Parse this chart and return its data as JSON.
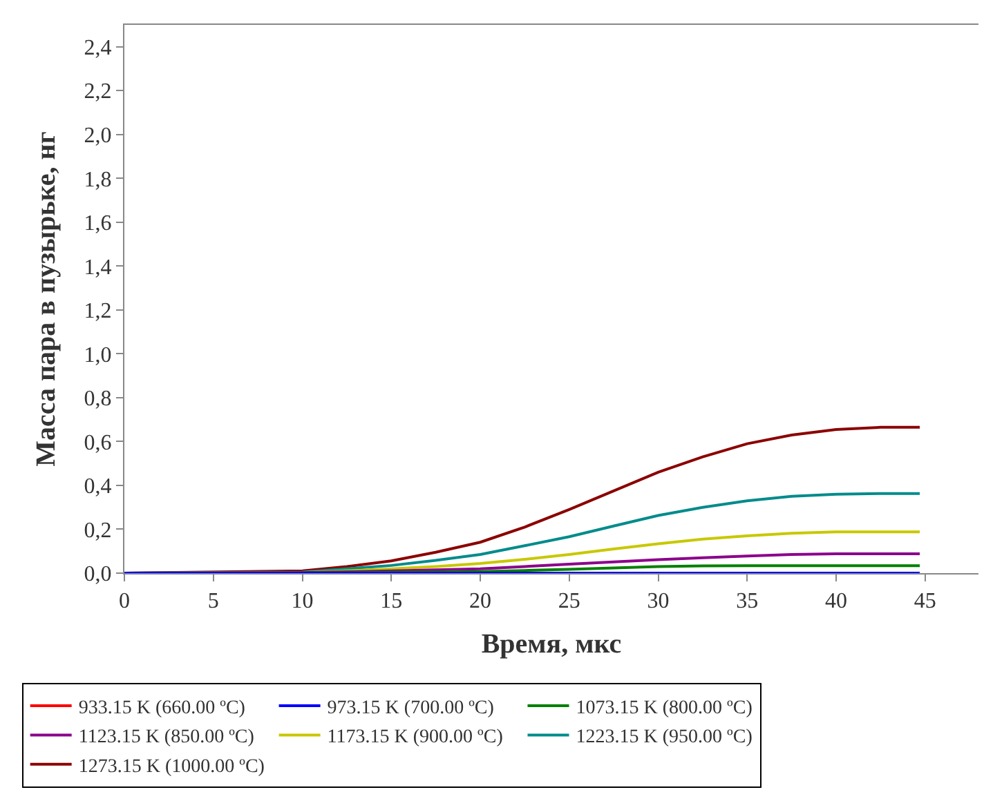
{
  "chart_data": {
    "type": "line",
    "xlabel": "Время, мкс",
    "ylabel": "Масса пара в пузырьке, нг",
    "x": [
      0,
      10,
      12.5,
      15,
      17.5,
      20,
      22.5,
      25,
      27.5,
      30,
      32.5,
      35,
      37.5,
      40,
      42.5,
      44.7
    ],
    "series": [
      {
        "name": "933.15 K (660.00 ºC)",
        "color": "#ff0000",
        "values": [
          null,
          null,
          null,
          null,
          null,
          null,
          null,
          null,
          null,
          null,
          null,
          null,
          null,
          null,
          null,
          null
        ]
      },
      {
        "name": "973.15 K (700.00 ºC)",
        "color": "#0000ff",
        "values": [
          0,
          0,
          0,
          0,
          0,
          0,
          0,
          0,
          0,
          0,
          0,
          0,
          0,
          0,
          0,
          0
        ]
      },
      {
        "name": "1073.15 K (800.00 ºC)",
        "color": "#008000",
        "values": [
          0,
          0.001,
          0.002,
          0.004,
          0.005,
          0.007,
          0.012,
          0.017,
          0.024,
          0.03,
          0.033,
          0.034,
          0.034,
          0.034,
          0.034,
          0.034
        ]
      },
      {
        "name": "1123.15 K (850.00 ºC)",
        "color": "#8b008b",
        "values": [
          0,
          0.002,
          0.006,
          0.01,
          0.015,
          0.02,
          0.03,
          0.041,
          0.051,
          0.061,
          0.07,
          0.078,
          0.085,
          0.088,
          0.088,
          0.088
        ]
      },
      {
        "name": "1173.15 K (900.00 ºC)",
        "color": "#c8c800",
        "values": [
          0,
          0.003,
          0.01,
          0.02,
          0.03,
          0.044,
          0.063,
          0.085,
          0.11,
          0.134,
          0.155,
          0.17,
          0.182,
          0.188,
          0.188,
          0.188
        ]
      },
      {
        "name": "1223.15 K (950.00 ºC)",
        "color": "#008b8b",
        "values": [
          0,
          0.005,
          0.02,
          0.035,
          0.058,
          0.085,
          0.125,
          0.166,
          0.215,
          0.263,
          0.3,
          0.33,
          0.35,
          0.36,
          0.363,
          0.363
        ]
      },
      {
        "name": "1273.15 K (1000.00 ºC)",
        "color": "#8b0000",
        "values": [
          0,
          0.01,
          0.03,
          0.056,
          0.095,
          0.141,
          0.21,
          0.29,
          0.375,
          0.46,
          0.53,
          0.59,
          0.63,
          0.655,
          0.665,
          0.665
        ]
      }
    ],
    "xlim": [
      0,
      48
    ],
    "xticks": [
      0,
      5,
      10,
      15,
      20,
      25,
      30,
      35,
      40,
      45
    ],
    "ylim": [
      0,
      2.5
    ],
    "yticks": [
      {
        "value": 0,
        "label": "0,0"
      },
      {
        "value": 0.2,
        "label": "0,2"
      },
      {
        "value": 0.4,
        "label": "0,4"
      },
      {
        "value": 0.6,
        "label": "0,6"
      },
      {
        "value": 0.8,
        "label": "0,8"
      },
      {
        "value": 1.0,
        "label": "1,0"
      },
      {
        "value": 1.2,
        "label": "1,2"
      },
      {
        "value": 1.4,
        "label": "1,4"
      },
      {
        "value": 1.6,
        "label": "1,6"
      },
      {
        "value": 1.8,
        "label": "1,8"
      },
      {
        "value": 2.0,
        "label": "2,0"
      },
      {
        "value": 2.2,
        "label": "2,2"
      },
      {
        "value": 2.4,
        "label": "2,4"
      }
    ],
    "legend": "bottom",
    "marker": "none",
    "line_style": "solid"
  }
}
